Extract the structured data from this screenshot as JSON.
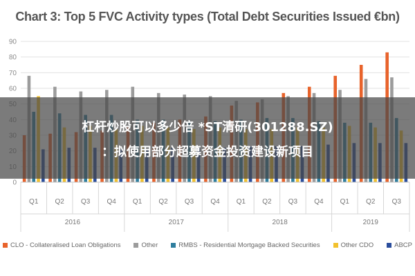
{
  "chart_data": {
    "type": "bar",
    "title": "Chart 3: Top 5 FVC Activity types (Total Debt Securities Issued €bn)",
    "xlabel": "",
    "ylabel": "",
    "ylim": [
      0,
      90
    ],
    "yticks": [
      0,
      10,
      20,
      30,
      40,
      50,
      60,
      70,
      80,
      90
    ],
    "grid": true,
    "legend_position": "bottom",
    "categories": [
      "Q1",
      "Q2",
      "Q3",
      "Q4",
      "Q1",
      "Q2",
      "Q3",
      "Q4",
      "Q1",
      "Q2",
      "Q3",
      "Q4",
      "Q1",
      "Q2",
      "Q3"
    ],
    "groups": [
      {
        "label": "2016",
        "count": 4
      },
      {
        "label": "2017",
        "count": 4
      },
      {
        "label": "2018",
        "count": 4
      },
      {
        "label": "2019",
        "count": 3
      }
    ],
    "series": [
      {
        "name": "CLO - Collateralised Loan Obligations",
        "color": "#e8632b",
        "values": [
          30,
          31,
          32,
          33,
          35,
          38,
          40,
          42,
          49,
          51,
          57,
          61,
          68,
          75,
          83
        ]
      },
      {
        "name": "Other",
        "color": "#9c9c9c",
        "values": [
          68,
          61,
          58,
          59,
          61,
          57,
          56,
          55,
          52,
          53,
          55,
          57,
          59,
          66,
          67
        ]
      },
      {
        "name": "RMBS - Residential Mortgage Backed Securities",
        "color": "#2f7e9e",
        "values": [
          45,
          44,
          43,
          43,
          40,
          40,
          39,
          39,
          40,
          41,
          41,
          39,
          38,
          38,
          41
        ]
      },
      {
        "name": "Other CDO",
        "color": "#f2c12e",
        "values": [
          55,
          35,
          36,
          34,
          36,
          35,
          34,
          35,
          34,
          34,
          35,
          35,
          36,
          35,
          33
        ]
      },
      {
        "name": "ABCP",
        "color": "#2a4d9c",
        "values": [
          21,
          22,
          22,
          21,
          21,
          22,
          22,
          22,
          23,
          23,
          23,
          24,
          25,
          25,
          25
        ]
      }
    ]
  },
  "overlay": {
    "line1": "杠杆炒股可以多少倍 *ST清研(301288.SZ)",
    "line2": "：拟使用部分超募资金投资建设新项目"
  }
}
